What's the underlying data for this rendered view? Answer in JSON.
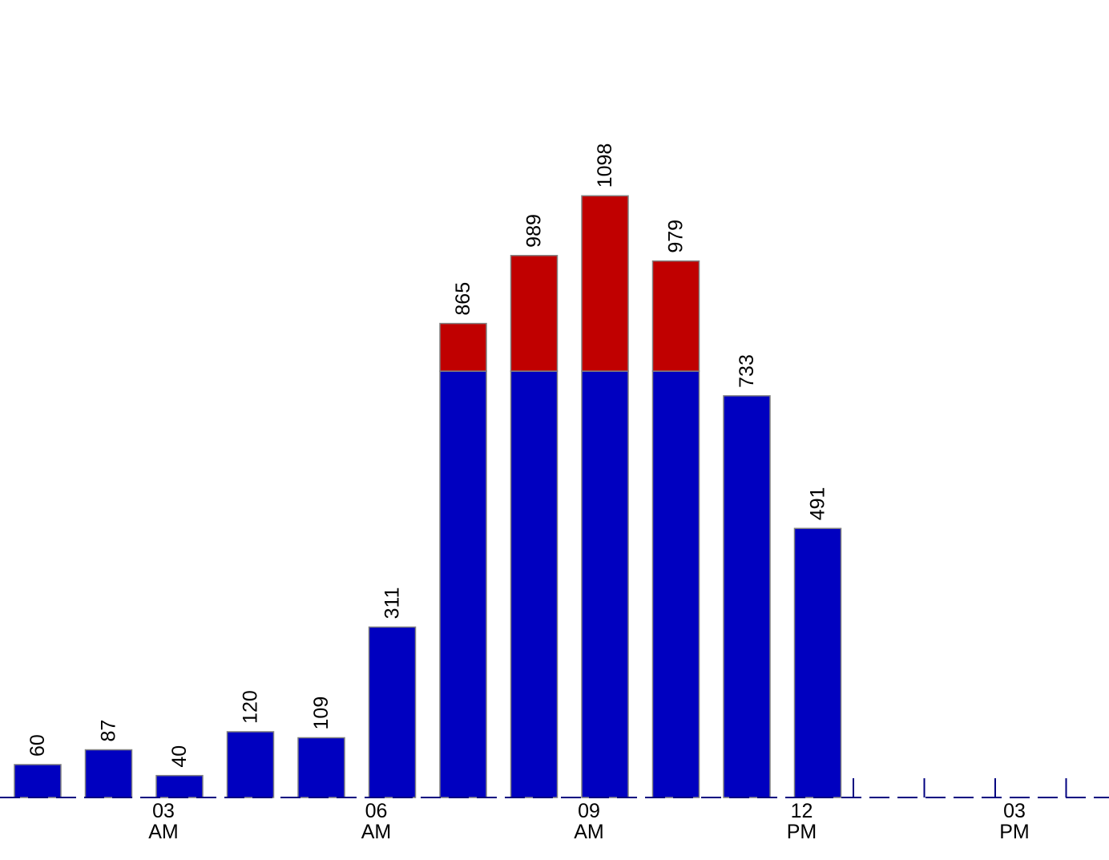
{
  "chart_data": {
    "type": "bar",
    "stacked": true,
    "legend": "none",
    "grid": false,
    "ylim": [
      0,
      1200
    ],
    "x": [
      1,
      2,
      3,
      4,
      5,
      6,
      7,
      8,
      9,
      10,
      11,
      12,
      13,
      14,
      15,
      16
    ],
    "values": [
      60,
      87,
      40,
      120,
      109,
      311,
      865,
      989,
      1098,
      979,
      733,
      491,
      null,
      null,
      null,
      null
    ],
    "series": [
      {
        "color": "#0000c0",
        "values": [
          60,
          87,
          40,
          120,
          109,
          311,
          778,
          778,
          778,
          778,
          733,
          491,
          null,
          null,
          null,
          null
        ]
      },
      {
        "color": "#c00000",
        "values": [
          0,
          0,
          0,
          0,
          0,
          0,
          87,
          211,
          320,
          201,
          0,
          0,
          null,
          null,
          null,
          null
        ]
      }
    ],
    "x_tick_labels": [
      {
        "at": 3,
        "lines": [
          "03",
          "AM"
        ]
      },
      {
        "at": 6,
        "lines": [
          "06",
          "AM"
        ]
      },
      {
        "at": 9,
        "lines": [
          "09",
          "AM"
        ]
      },
      {
        "at": 12,
        "lines": [
          "12",
          "PM"
        ]
      },
      {
        "at": 15,
        "lines": [
          "03",
          "PM"
        ]
      }
    ],
    "colors": {
      "axis": "#000080",
      "bar_edge": "#808080"
    }
  }
}
